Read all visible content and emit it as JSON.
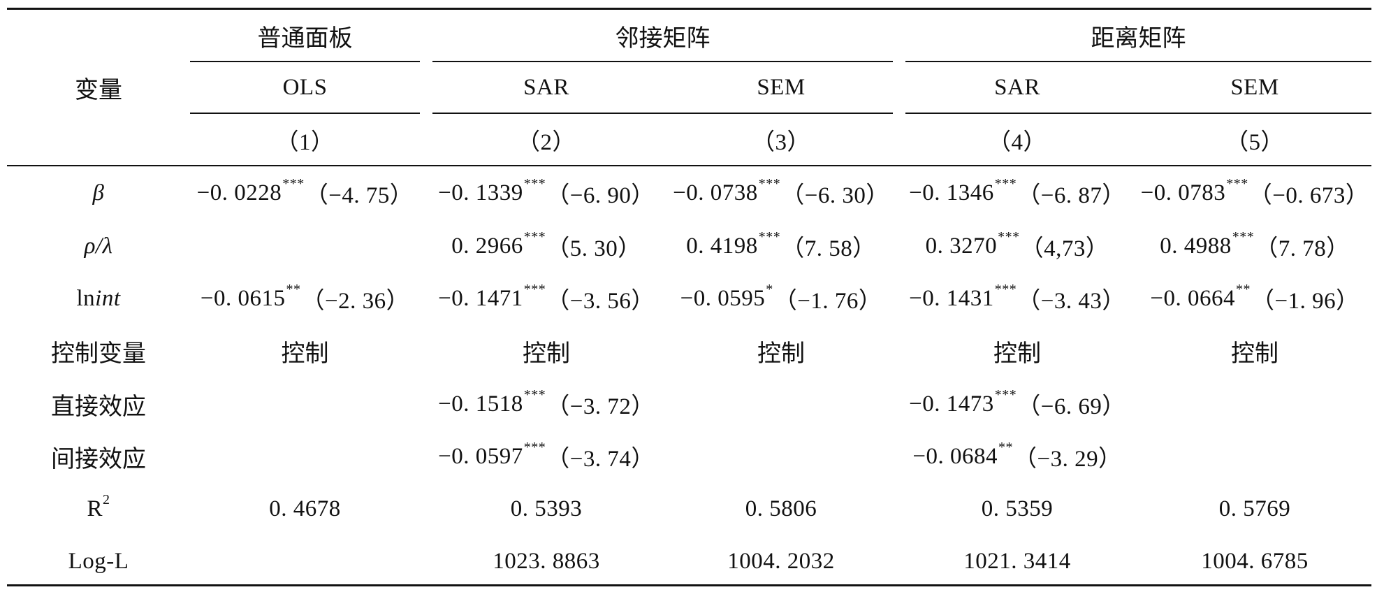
{
  "table": {
    "var_header": "变量",
    "groups": [
      "普通面板",
      "邻接矩阵",
      "距离矩阵"
    ],
    "models": [
      "OLS",
      "SAR",
      "SEM",
      "SAR",
      "SEM"
    ],
    "col_numbers": [
      "（1）",
      "（2）",
      "（3）",
      "（4）",
      "（5）"
    ],
    "row_labels": {
      "beta": "β",
      "rho_lambda": "ρ/λ",
      "lnint_prefix": "ln",
      "lnint_italic": "int",
      "controls": "控制变量",
      "direct": "直接效应",
      "indirect": "间接效应",
      "r2_base": "R",
      "r2_sup": "2",
      "logl": "Log-L"
    },
    "rows": {
      "beta": [
        {
          "coef": "−0. 0228",
          "stars": "***",
          "t": "（−4. 75）"
        },
        {
          "coef": "−0. 1339",
          "stars": "***",
          "t": "（−6. 90）"
        },
        {
          "coef": "−0. 0738",
          "stars": "***",
          "t": "（−6. 30）"
        },
        {
          "coef": "−0. 1346",
          "stars": "***",
          "t": "（−6. 87）"
        },
        {
          "coef": "−0. 0783",
          "stars": "***",
          "t": "（−0. 673）"
        }
      ],
      "rho_lambda": [
        {
          "coef": "",
          "stars": "",
          "t": ""
        },
        {
          "coef": "0. 2966",
          "stars": "***",
          "t": "（5. 30）"
        },
        {
          "coef": "0. 4198",
          "stars": "***",
          "t": "（7. 58）"
        },
        {
          "coef": "0. 3270",
          "stars": "***",
          "t": "（4,73）"
        },
        {
          "coef": "0. 4988",
          "stars": "***",
          "t": "（7. 78）"
        }
      ],
      "lnint": [
        {
          "coef": "−0. 0615",
          "stars": "**",
          "t": "（−2. 36）"
        },
        {
          "coef": "−0. 1471",
          "stars": "***",
          "t": "（−3. 56）"
        },
        {
          "coef": "−0. 0595",
          "stars": "*",
          "t": "（−1. 76）"
        },
        {
          "coef": "−0. 1431",
          "stars": "***",
          "t": "（−3. 43）"
        },
        {
          "coef": "−0. 0664",
          "stars": "**",
          "t": "（−1. 96）"
        }
      ],
      "controls": [
        "控制",
        "控制",
        "控制",
        "控制",
        "控制"
      ],
      "direct": [
        {
          "coef": "",
          "stars": "",
          "t": ""
        },
        {
          "coef": "−0. 1518",
          "stars": "***",
          "t": "（−3. 72）"
        },
        {
          "coef": "",
          "stars": "",
          "t": ""
        },
        {
          "coef": "−0. 1473",
          "stars": "***",
          "t": "（−6. 69）"
        },
        {
          "coef": "",
          "stars": "",
          "t": ""
        }
      ],
      "indirect": [
        {
          "coef": "",
          "stars": "",
          "t": ""
        },
        {
          "coef": "−0. 0597",
          "stars": "***",
          "t": "（−3. 74）"
        },
        {
          "coef": "",
          "stars": "",
          "t": ""
        },
        {
          "coef": "−0. 0684",
          "stars": "**",
          "t": "（−3. 29）"
        },
        {
          "coef": "",
          "stars": "",
          "t": ""
        }
      ],
      "r2": [
        "0. 4678",
        "0. 5393",
        "0. 5806",
        "0. 5359",
        "0. 5769"
      ],
      "logl": [
        "",
        "1023. 8863",
        "1004. 2032",
        "1021. 3414",
        "1004. 6785"
      ]
    }
  }
}
